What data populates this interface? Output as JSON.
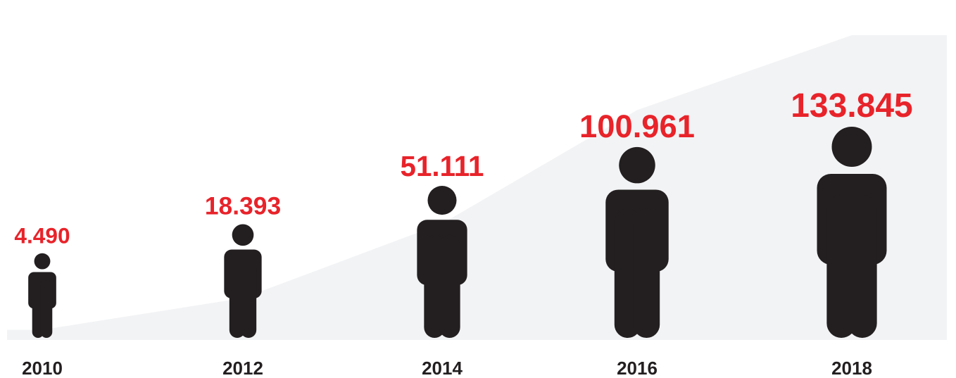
{
  "chart_data": {
    "type": "pictograph",
    "categories": [
      "2010",
      "2012",
      "2014",
      "2016",
      "2018"
    ],
    "values": [
      4490,
      18393,
      51111,
      100961,
      133845
    ],
    "value_labels": [
      "4.490",
      "18.393",
      "51.111",
      "100.961",
      "133.845"
    ],
    "color": "#231f20",
    "label_color": "#e8232a",
    "area_color": "#f2f3f5"
  }
}
